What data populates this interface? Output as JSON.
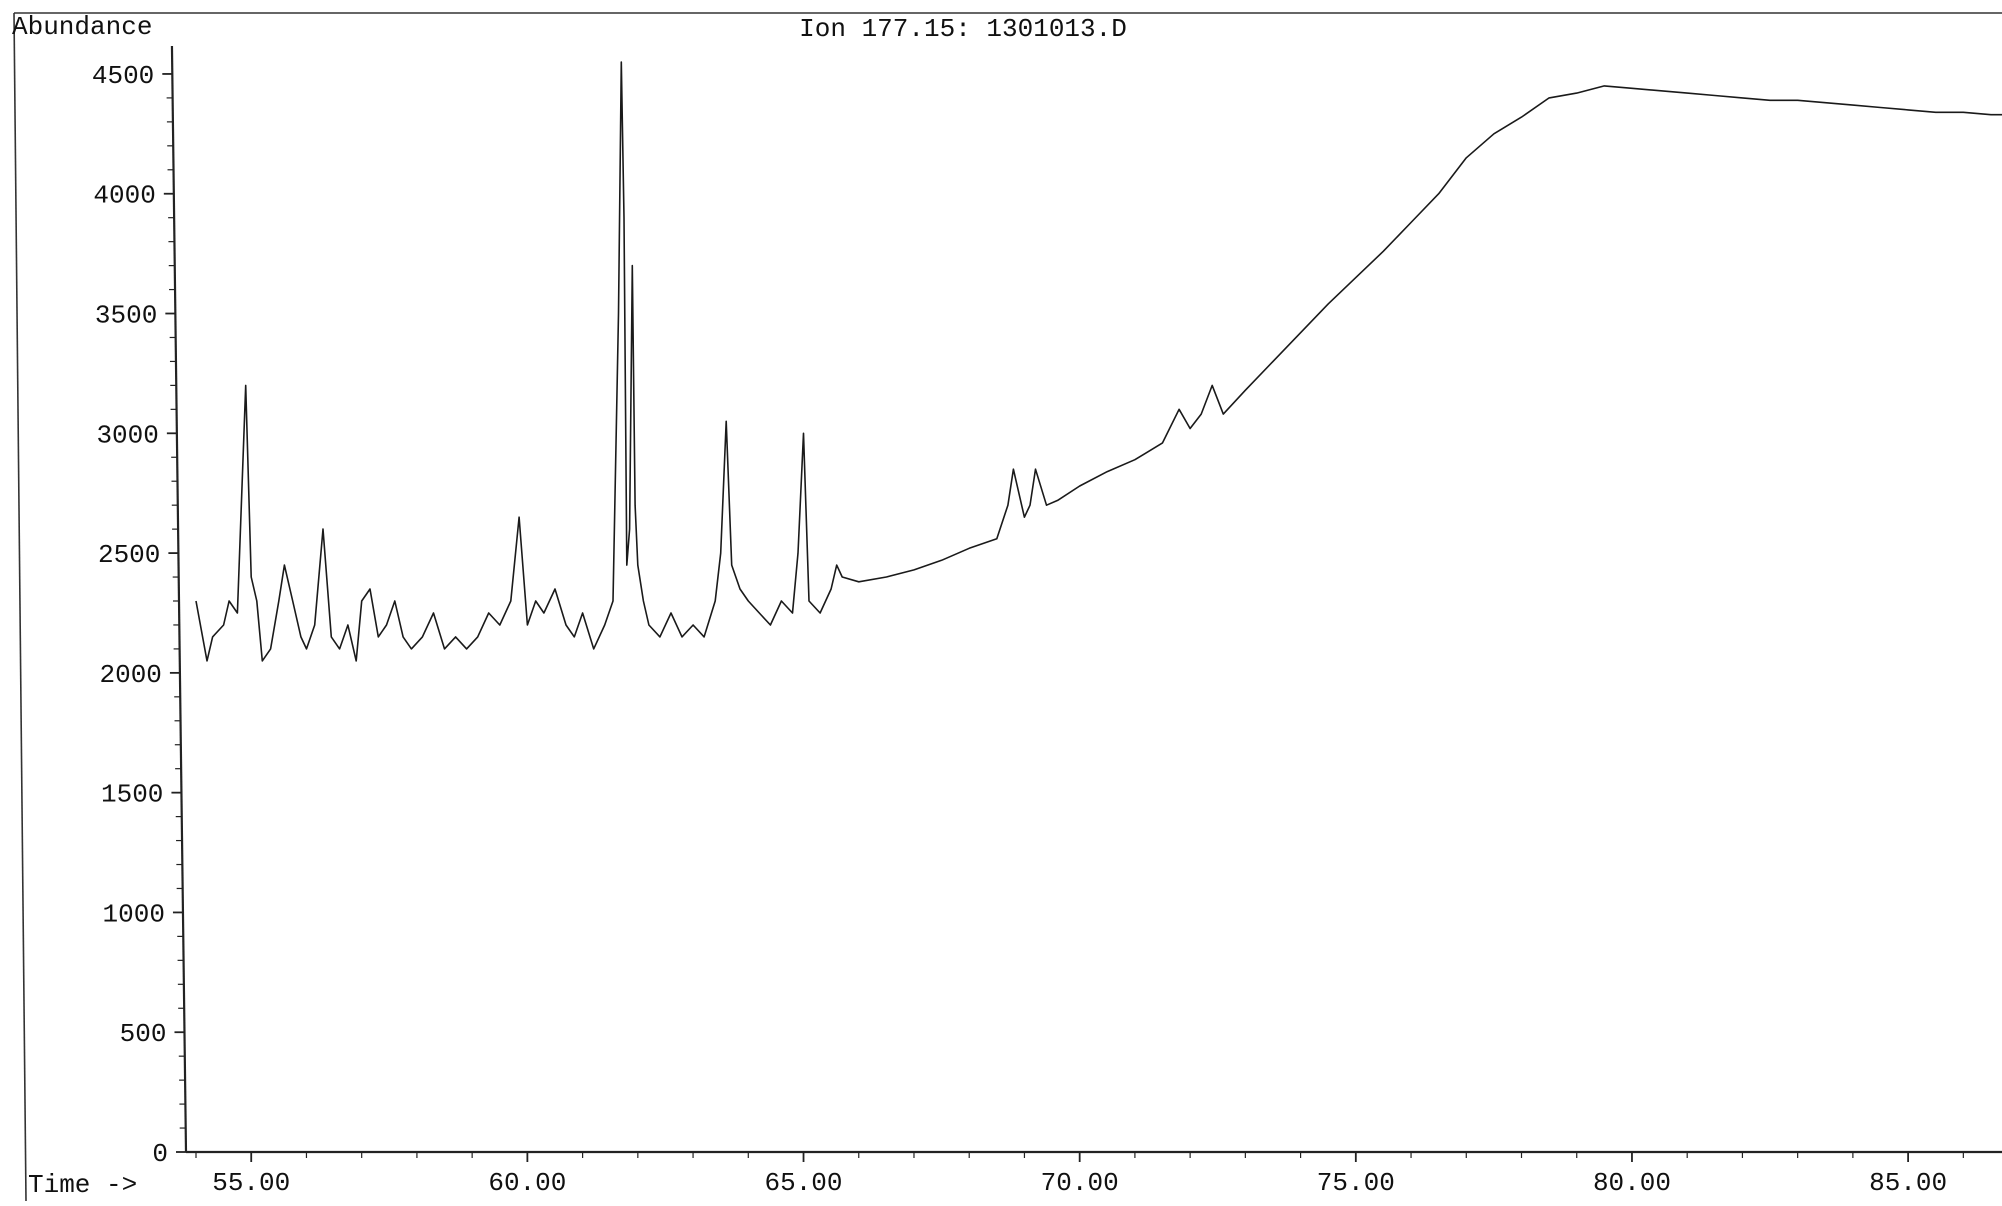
{
  "chart_data": {
    "type": "line",
    "title": "Ion 177.15: 1301013.D",
    "ylabel": "Abundance",
    "xlabel": "Time ->",
    "xlim": [
      54.0,
      86.7
    ],
    "ylim": [
      0,
      4600
    ],
    "x_ticks": [
      55,
      60,
      65,
      70,
      75,
      80,
      85
    ],
    "x_tick_labels": [
      "55.00",
      "60.00",
      "65.00",
      "70.00",
      "75.00",
      "80.00",
      "85.00"
    ],
    "y_ticks": [
      0,
      500,
      1000,
      1500,
      2000,
      2500,
      3000,
      3500,
      4000,
      4500
    ],
    "y_tick_labels": [
      "0",
      "500",
      "1000",
      "1500",
      "2000",
      "2500",
      "3000",
      "3500",
      "4000",
      "4500"
    ],
    "grid": false,
    "series": [
      {
        "color": "#1a1a1a",
        "x": [
          54.0,
          54.2,
          54.3,
          54.5,
          54.6,
          54.75,
          54.9,
          55.0,
          55.1,
          55.2,
          55.35,
          55.5,
          55.6,
          55.75,
          55.9,
          56.0,
          56.15,
          56.3,
          56.45,
          56.6,
          56.75,
          56.9,
          57.0,
          57.15,
          57.3,
          57.45,
          57.6,
          57.75,
          57.9,
          58.1,
          58.3,
          58.5,
          58.7,
          58.9,
          59.1,
          59.3,
          59.5,
          59.7,
          59.85,
          60.0,
          60.15,
          60.3,
          60.5,
          60.7,
          60.85,
          61.0,
          61.2,
          61.4,
          61.55,
          61.65,
          61.7,
          61.75,
          61.8,
          61.85,
          61.9,
          61.95,
          62.0,
          62.1,
          62.2,
          62.4,
          62.6,
          62.8,
          63.0,
          63.2,
          63.4,
          63.5,
          63.6,
          63.7,
          63.85,
          64.0,
          64.2,
          64.4,
          64.6,
          64.8,
          64.9,
          65.0,
          65.1,
          65.3,
          65.5,
          65.6,
          65.7,
          66.0,
          66.5,
          67.0,
          67.5,
          68.0,
          68.5,
          68.7,
          68.8,
          69.0,
          69.1,
          69.2,
          69.4,
          69.6,
          70.0,
          70.5,
          71.0,
          71.5,
          71.8,
          72.0,
          72.2,
          72.4,
          72.6,
          73.0,
          73.5,
          74.0,
          74.5,
          75.0,
          75.5,
          76.0,
          76.5,
          77.0,
          77.5,
          78.0,
          78.5,
          79.0,
          79.5,
          80.0,
          80.5,
          81.0,
          81.5,
          82.0,
          82.5,
          83.0,
          83.5,
          84.0,
          84.5,
          85.0,
          85.5,
          86.0,
          86.5,
          86.7
        ],
        "y": [
          2300,
          2050,
          2150,
          2200,
          2300,
          2250,
          3200,
          2400,
          2300,
          2050,
          2100,
          2300,
          2450,
          2300,
          2150,
          2100,
          2200,
          2600,
          2150,
          2100,
          2200,
          2050,
          2300,
          2350,
          2150,
          2200,
          2300,
          2150,
          2100,
          2150,
          2250,
          2100,
          2150,
          2100,
          2150,
          2250,
          2200,
          2300,
          2650,
          2200,
          2300,
          2250,
          2350,
          2200,
          2150,
          2250,
          2100,
          2200,
          2300,
          3500,
          4550,
          3900,
          2450,
          2600,
          3700,
          2700,
          2450,
          2300,
          2200,
          2150,
          2250,
          2150,
          2200,
          2150,
          2300,
          2500,
          3050,
          2450,
          2350,
          2300,
          2250,
          2200,
          2300,
          2250,
          2500,
          3000,
          2300,
          2250,
          2350,
          2450,
          2400,
          2380,
          2400,
          2430,
          2470,
          2520,
          2560,
          2700,
          2850,
          2650,
          2700,
          2850,
          2700,
          2720,
          2780,
          2840,
          2890,
          2960,
          3100,
          3020,
          3080,
          3200,
          3080,
          3180,
          3300,
          3420,
          3540,
          3650,
          3760,
          3880,
          4000,
          4150,
          4250,
          4320,
          4400,
          4420,
          4450,
          4440,
          4430,
          4420,
          4410,
          4400,
          4390,
          4390,
          4380,
          4370,
          4360,
          4350,
          4340,
          4340,
          4330,
          4330
        ]
      }
    ]
  }
}
